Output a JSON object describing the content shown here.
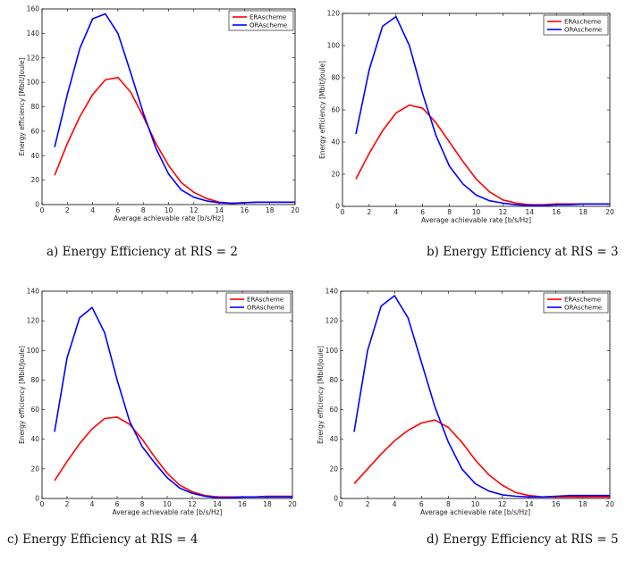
{
  "chart_data": [
    {
      "type": "line",
      "xlabel": "Average achievable rate [b/s/Hz]",
      "ylabel": "Energy efficiency [Mbit/Joule]",
      "xlim": [
        0,
        20
      ],
      "ylim": [
        0,
        160
      ],
      "xticks": [
        0,
        2,
        4,
        6,
        8,
        10,
        12,
        14,
        16,
        18,
        20
      ],
      "yticks": [
        0,
        20,
        40,
        60,
        80,
        100,
        120,
        140,
        160
      ],
      "legend": "top-right",
      "caption": "a) Energy Efficiency at RIS = 2",
      "series": [
        {
          "name": "ERAscheme",
          "color": "#ff0000",
          "x": [
            1,
            2,
            3,
            4,
            5,
            6,
            7,
            8,
            9,
            10,
            11,
            12,
            13,
            14,
            15,
            16,
            17,
            18,
            19,
            20
          ],
          "y": [
            24,
            50,
            72,
            90,
            102,
            104,
            92,
            72,
            50,
            32,
            18,
            10,
            5,
            2,
            1,
            1.5,
            2,
            2,
            2,
            2
          ]
        },
        {
          "name": "ORAscheme",
          "color": "#0000ff",
          "x": [
            1,
            2,
            3,
            4,
            5,
            6,
            7,
            8,
            9,
            10,
            11,
            12,
            13,
            14,
            15,
            16,
            17,
            18,
            19,
            20
          ],
          "y": [
            47,
            90,
            128,
            152,
            156,
            140,
            108,
            75,
            46,
            25,
            12,
            6,
            3,
            1.5,
            1,
            1.5,
            2,
            2,
            2,
            2
          ]
        }
      ]
    },
    {
      "type": "line",
      "xlabel": "Average achievable rate [b/s/Hz]",
      "ylabel": "Energy efficiency [Mbit/Joule]",
      "xlim": [
        0,
        20
      ],
      "ylim": [
        0,
        120
      ],
      "xticks": [
        0,
        2,
        4,
        6,
        8,
        10,
        12,
        14,
        16,
        18,
        20
      ],
      "yticks": [
        0,
        20,
        40,
        60,
        80,
        100,
        120
      ],
      "legend": "top-right",
      "caption": "b) Energy Efficiency at RIS = 3",
      "series": [
        {
          "name": "ERAscheme",
          "color": "#ff0000",
          "x": [
            1,
            2,
            3,
            4,
            5,
            6,
            7,
            8,
            9,
            10,
            11,
            12,
            13,
            14,
            15,
            16,
            17,
            18,
            19,
            20
          ],
          "y": [
            17,
            33,
            47,
            58,
            63,
            61,
            52,
            40,
            28,
            17,
            9,
            4,
            2,
            1,
            1,
            1.5,
            1.5,
            1.5,
            1.5,
            1.5
          ]
        },
        {
          "name": "ORAscheme",
          "color": "#0000ff",
          "x": [
            1,
            2,
            3,
            4,
            5,
            6,
            7,
            8,
            9,
            10,
            11,
            12,
            13,
            14,
            15,
            16,
            17,
            18,
            19,
            20
          ],
          "y": [
            45,
            85,
            112,
            118,
            100,
            70,
            44,
            25,
            14,
            7,
            3.5,
            2,
            1,
            0.5,
            0.5,
            1,
            1,
            1.5,
            1.5,
            1.5
          ]
        }
      ]
    },
    {
      "type": "line",
      "xlabel": "Average achievable rate [b/s/Hz]",
      "ylabel": "Energy efficiency [Mbit/Joule]",
      "xlim": [
        0,
        20
      ],
      "ylim": [
        0,
        140
      ],
      "xticks": [
        0,
        2,
        4,
        6,
        8,
        10,
        12,
        14,
        16,
        18,
        20
      ],
      "yticks": [
        0,
        20,
        40,
        60,
        80,
        100,
        120,
        140
      ],
      "legend": "top-right",
      "caption": "c) Energy Efficiency at RIS = 4",
      "series": [
        {
          "name": "ERAscheme",
          "color": "#ff0000",
          "x": [
            1,
            2,
            3,
            4,
            5,
            6,
            7,
            8,
            9,
            10,
            11,
            12,
            13,
            14,
            15,
            16,
            17,
            18,
            19,
            20
          ],
          "y": [
            12,
            25,
            37,
            47,
            54,
            55,
            50,
            40,
            28,
            17,
            9,
            4.5,
            2,
            1,
            1,
            1,
            1,
            1.5,
            1.5,
            1.5
          ]
        },
        {
          "name": "ORAscheme",
          "color": "#0000ff",
          "x": [
            1,
            2,
            3,
            4,
            5,
            6,
            7,
            8,
            9,
            10,
            11,
            12,
            13,
            14,
            15,
            16,
            17,
            18,
            19,
            20
          ],
          "y": [
            45,
            95,
            122,
            129,
            112,
            80,
            52,
            35,
            24,
            14,
            7,
            3.5,
            1.5,
            0.5,
            0.5,
            1,
            1,
            1,
            1,
            1
          ]
        }
      ]
    },
    {
      "type": "line",
      "xlabel": "Average achievable rate [b/s/Hz]",
      "ylabel": "Energy efficiency [Mbit/Joule]",
      "xlim": [
        0,
        20
      ],
      "ylim": [
        0,
        140
      ],
      "xticks": [
        0,
        2,
        4,
        6,
        8,
        10,
        12,
        14,
        16,
        18,
        20
      ],
      "yticks": [
        0,
        20,
        40,
        60,
        80,
        100,
        120,
        140
      ],
      "legend": "top-right",
      "caption": "d) Energy Efficiency at RIS = 5",
      "series": [
        {
          "name": "ERAscheme",
          "color": "#ff0000",
          "x": [
            1,
            2,
            3,
            4,
            5,
            6,
            7,
            8,
            9,
            10,
            11,
            12,
            13,
            14,
            15,
            16,
            17,
            18,
            19,
            20
          ],
          "y": [
            10,
            20,
            30,
            39,
            46,
            51,
            53,
            48,
            38,
            26,
            16,
            9,
            4,
            2,
            1,
            1,
            1,
            1,
            1,
            1
          ]
        },
        {
          "name": "ORAscheme",
          "color": "#0000ff",
          "x": [
            1,
            2,
            3,
            4,
            5,
            6,
            7,
            8,
            9,
            10,
            11,
            12,
            13,
            14,
            15,
            16,
            17,
            18,
            19,
            20
          ],
          "y": [
            45,
            100,
            130,
            137,
            122,
            92,
            62,
            38,
            20,
            10,
            5,
            2.5,
            1.5,
            1,
            1,
            1.5,
            2,
            2,
            2,
            2
          ]
        }
      ]
    }
  ]
}
